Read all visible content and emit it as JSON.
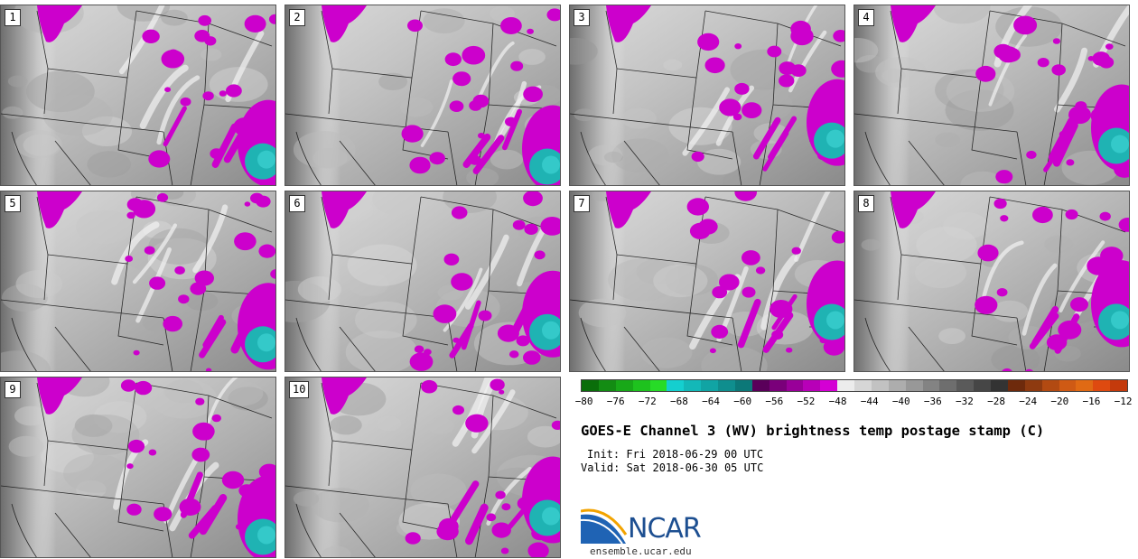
{
  "panels": [
    {
      "label": "1"
    },
    {
      "label": "2"
    },
    {
      "label": "3"
    },
    {
      "label": "4"
    },
    {
      "label": "5"
    },
    {
      "label": "6"
    },
    {
      "label": "7"
    },
    {
      "label": "8"
    },
    {
      "label": "9"
    },
    {
      "label": "10"
    }
  ],
  "colorbar": {
    "colors": [
      "#0a6e0a",
      "#138c13",
      "#18a818",
      "#1ec21e",
      "#27db27",
      "#14cfcf",
      "#13b8b8",
      "#11a4a4",
      "#0f8e8e",
      "#0c7878",
      "#5a005a",
      "#7a007a",
      "#990099",
      "#b800b8",
      "#d400d4",
      "#ececec",
      "#d6d6d6",
      "#c2c2c2",
      "#adadad",
      "#989898",
      "#838383",
      "#6e6e6e",
      "#5a5a5a",
      "#464646",
      "#333333",
      "#6e2a0c",
      "#8e3a10",
      "#b24a12",
      "#cf5a14",
      "#e06a14",
      "#de4a10",
      "#c43a0c"
    ],
    "ticks": [
      "-80",
      "-76",
      "-72",
      "-68",
      "-64",
      "-60",
      "-56",
      "-52",
      "-48",
      "-44",
      "-40",
      "-36",
      "-32",
      "-28",
      "-24",
      "-20",
      "-16",
      "-12"
    ],
    "min": -80,
    "max": -12
  },
  "title": "GOES-E Channel 3 (WV) brightness temp postage stamp (C)",
  "init": "Init: Fri 2018-06-29 00 UTC",
  "valid": "Valid: Sat 2018-06-30 05 UTC",
  "logo": {
    "text": "NCAR",
    "site": "ensemble.ucar.edu"
  },
  "colors": {
    "cold_cloud": "#cc00cc",
    "very_cold_cloud": "#1fb3b3",
    "background_dark": "#7d7d7d",
    "background_light": "#d9d9d9"
  }
}
